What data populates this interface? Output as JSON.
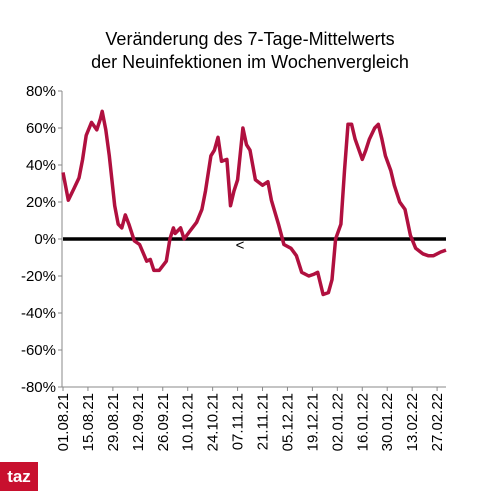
{
  "chart_data": {
    "type": "line",
    "title": [
      "Veränderung des 7-Tage-Mittelwerts",
      "der Neuinfektionen im Wochenvergleich"
    ],
    "x": [
      "01.08.21",
      "04.08.21",
      "07.08.21",
      "10.08.21",
      "12.08.21",
      "14.08.21",
      "17.08.21",
      "20.08.21",
      "22.08.21",
      "23.08.21",
      "25.08.21",
      "27.08.21",
      "30.08.21",
      "01.09.21",
      "03.09.21",
      "05.09.21",
      "07.09.21",
      "10.09.21",
      "13.09.21",
      "17.09.21",
      "19.09.21",
      "21.09.21",
      "24.09.21",
      "28.09.21",
      "30.09.21",
      "02.10.21",
      "03.10.21",
      "06.10.21",
      "08.10.21",
      "11.10.21",
      "15.10.21",
      "18.10.21",
      "20.10.21",
      "23.10.21",
      "25.10.21",
      "27.10.21",
      "29.10.21",
      "01.11.21",
      "03.11.21",
      "05.11.21",
      "07.11.21",
      "10.11.21",
      "12.11.21",
      "14.11.21",
      "17.11.21",
      "21.11.21",
      "24.11.21",
      "26.11.21",
      "30.11.21",
      "03.12.21",
      "07.12.21",
      "10.12.21",
      "13.12.21",
      "17.12.21",
      "20.12.21",
      "22.12.21",
      "25.12.21",
      "28.12.21",
      "30.12.21",
      "01.01.22",
      "04.01.22",
      "06.01.22",
      "08.01.22",
      "10.01.22",
      "12.01.22",
      "16.01.22",
      "18.01.22",
      "20.01.22",
      "23.01.22",
      "25.01.22",
      "27.01.22",
      "29.01.22",
      "01.02.22",
      "03.02.22",
      "06.02.22",
      "09.02.22",
      "12.02.22",
      "15.02.22",
      "19.02.22",
      "22.02.22",
      "25.02.22",
      "01.03.22",
      "04.03.22"
    ],
    "series": [
      {
        "name": "Veränderung",
        "color": "#b0103f",
        "values": [
          36,
          21,
          27,
          33,
          43,
          56,
          63,
          59,
          65,
          69,
          59,
          45,
          18,
          8,
          6,
          13,
          8,
          -1,
          -3,
          -12,
          -11,
          -17,
          -17,
          -12,
          0,
          6,
          3,
          6,
          0,
          4,
          9,
          16,
          26,
          45,
          48,
          55,
          42,
          43,
          18,
          26,
          32,
          60,
          51,
          48,
          32,
          29,
          31,
          21,
          8,
          -3,
          -5,
          -9,
          -18,
          -20,
          -19,
          -18,
          -30,
          -29,
          -22,
          0,
          8,
          37,
          62,
          62,
          54,
          43,
          48,
          54,
          60,
          62,
          54,
          45,
          37,
          29,
          20,
          16,
          2,
          -5,
          -8,
          -9,
          -9,
          -7,
          -6
        ]
      }
    ],
    "xlim": [
      "01.08.21",
      "04.03.22"
    ],
    "xticks": [
      "01.08.21",
      "15.08.21",
      "29.08.21",
      "12.09.21",
      "26.09.21",
      "10.10.21",
      "24.10.21",
      "07.11.21",
      "21.11.21",
      "05.12.21",
      "19.12.21",
      "02.01.22",
      "16.01.22",
      "30.01.22",
      "13.02.22",
      "27.02.22"
    ],
    "ylim": [
      -80,
      80
    ],
    "yticks": [
      {
        "value": -80,
        "label": "-80%"
      },
      {
        "value": -60,
        "label": "-60%"
      },
      {
        "value": -40,
        "label": "-40%"
      },
      {
        "value": -20,
        "label": "-20%"
      },
      {
        "value": 0,
        "label": "0%"
      },
      {
        "value": 20,
        "label": "20%"
      },
      {
        "value": 40,
        "label": "40%"
      },
      {
        "value": 60,
        "label": "60%"
      },
      {
        "value": 80,
        "label": "80%"
      }
    ],
    "annotation": "<",
    "logo": "taz"
  }
}
